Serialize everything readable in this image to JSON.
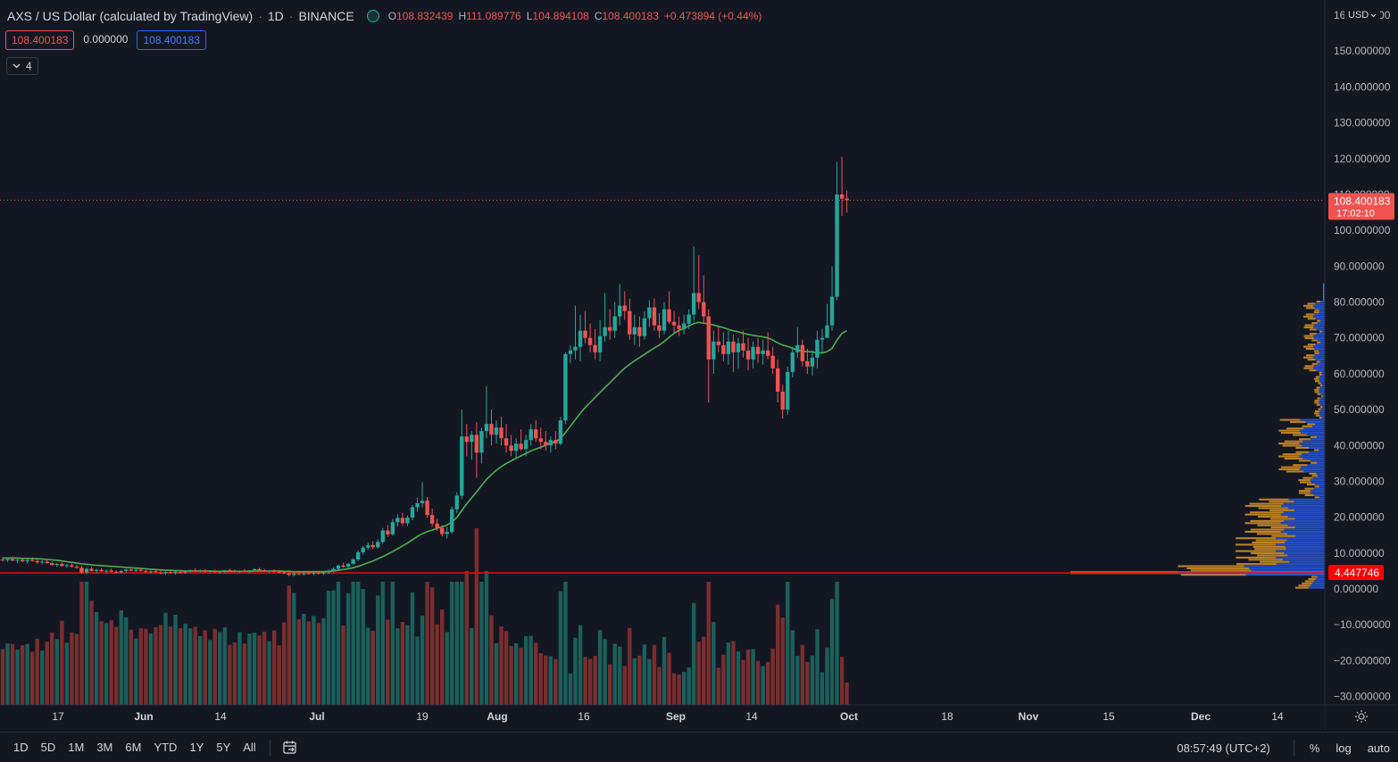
{
  "header": {
    "symbol": "AXS / US Dollar (calculated by TradingView)",
    "interval": "1D",
    "exchange": "BINANCE",
    "ohlc": {
      "o_label": "O",
      "o_value": "108.832439",
      "h_label": "H",
      "h_value": "111.089776",
      "l_label": "L",
      "l_value": "104.894108",
      "c_label": "C",
      "c_value": "108.400183",
      "change": "+0.473894 (+0.44%)"
    }
  },
  "badges": {
    "bid": "108.400183",
    "spread": "0.000000",
    "ask": "108.400183"
  },
  "indicators_toggle": {
    "count": "4"
  },
  "price_axis": {
    "currency": "USD",
    "partial_top_label": "160.000000",
    "ticks": [
      "150.000000",
      "140.000000",
      "130.000000",
      "120.000000",
      "110.000000",
      "100.000000",
      "90.000000",
      "80.000000",
      "70.000000",
      "60.000000",
      "50.000000",
      "40.000000",
      "30.000000",
      "20.000000",
      "10.000000",
      "0.000000",
      "−10.000000",
      "−20.000000",
      "−30.000000"
    ],
    "last_price_label": "108.400183",
    "countdown_label": "17:02:10",
    "hline_label": "4.447746"
  },
  "time_axis": {
    "ticks": [
      "17",
      "Jun",
      "14",
      "Jul",
      "19",
      "Aug",
      "16",
      "Sep",
      "14",
      "Oct",
      "18",
      "Nov",
      "15",
      "Dec",
      "14"
    ]
  },
  "bottom_bar": {
    "ranges": [
      "1D",
      "5D",
      "1M",
      "3M",
      "6M",
      "YTD",
      "1Y",
      "5Y",
      "All"
    ],
    "clock": "08:57:49 (UTC+2)",
    "percent_label": "%",
    "log_label": "log",
    "auto_label": "auto"
  },
  "colors": {
    "background": "#131722",
    "up": "#26a69a",
    "down": "#ef5350",
    "volume_up": "#1b5f5a",
    "volume_down": "#7a2e2e",
    "ma_line": "#4caf50",
    "hline": "#ff0000",
    "vp_blue": "#2962ff",
    "vp_yellow": "#f5a623"
  },
  "icons": {
    "indicator_chevron": "chevron-down-icon",
    "goto_date": "calendar-goto-icon",
    "settings": "gear-icon",
    "status": "market-status-icon"
  },
  "chart_data": {
    "type": "candlestick",
    "x_axis": "date (2021, daily)",
    "y_axis": "price USD",
    "ylim": [
      -32,
      160
    ],
    "horizontal_line": 4.447746,
    "last_price": 108.400183,
    "candles": [
      {
        "o": 8.2,
        "h": 8.9,
        "l": 7.6,
        "c": 8.0
      },
      {
        "o": 8.0,
        "h": 8.8,
        "l": 7.5,
        "c": 8.3
      },
      {
        "o": 8.3,
        "h": 9.0,
        "l": 7.8,
        "c": 7.9
      },
      {
        "o": 7.9,
        "h": 8.4,
        "l": 7.2,
        "c": 8.1
      },
      {
        "o": 8.1,
        "h": 8.6,
        "l": 7.5,
        "c": 7.7
      },
      {
        "o": 7.7,
        "h": 8.3,
        "l": 7.1,
        "c": 8.0
      },
      {
        "o": 8.0,
        "h": 8.8,
        "l": 7.6,
        "c": 7.8
      },
      {
        "o": 7.8,
        "h": 8.2,
        "l": 7.0,
        "c": 7.4
      },
      {
        "o": 7.4,
        "h": 8.0,
        "l": 6.9,
        "c": 7.6
      },
      {
        "o": 7.6,
        "h": 8.1,
        "l": 7.0,
        "c": 7.2
      },
      {
        "o": 7.2,
        "h": 7.6,
        "l": 6.5,
        "c": 6.7
      },
      {
        "o": 6.7,
        "h": 7.2,
        "l": 6.1,
        "c": 7.0
      },
      {
        "o": 7.0,
        "h": 7.4,
        "l": 6.2,
        "c": 6.4
      },
      {
        "o": 6.4,
        "h": 7.0,
        "l": 5.9,
        "c": 6.6
      },
      {
        "o": 6.6,
        "h": 7.1,
        "l": 6.0,
        "c": 6.2
      },
      {
        "o": 6.2,
        "h": 6.7,
        "l": 5.6,
        "c": 5.9
      },
      {
        "o": 5.9,
        "h": 6.4,
        "l": 4.2,
        "c": 4.6
      },
      {
        "o": 4.6,
        "h": 6.0,
        "l": 4.1,
        "c": 5.6
      },
      {
        "o": 5.6,
        "h": 6.1,
        "l": 4.9,
        "c": 5.0
      },
      {
        "o": 5.0,
        "h": 5.6,
        "l": 4.4,
        "c": 5.3
      },
      {
        "o": 5.3,
        "h": 5.8,
        "l": 4.8,
        "c": 4.9
      },
      {
        "o": 4.9,
        "h": 5.4,
        "l": 4.3,
        "c": 5.1
      },
      {
        "o": 5.1,
        "h": 5.7,
        "l": 4.6,
        "c": 4.8
      },
      {
        "o": 4.8,
        "h": 5.2,
        "l": 4.2,
        "c": 4.6
      },
      {
        "o": 4.6,
        "h": 5.3,
        "l": 4.3,
        "c": 5.0
      },
      {
        "o": 5.0,
        "h": 5.6,
        "l": 4.6,
        "c": 5.4
      },
      {
        "o": 5.4,
        "h": 5.9,
        "l": 4.9,
        "c": 5.1
      },
      {
        "o": 5.1,
        "h": 5.6,
        "l": 4.7,
        "c": 5.3
      },
      {
        "o": 5.3,
        "h": 5.8,
        "l": 4.8,
        "c": 5.0
      },
      {
        "o": 5.0,
        "h": 5.4,
        "l": 4.5,
        "c": 4.7
      },
      {
        "o": 4.7,
        "h": 5.2,
        "l": 4.3,
        "c": 4.9
      },
      {
        "o": 4.9,
        "h": 5.3,
        "l": 4.4,
        "c": 4.6
      },
      {
        "o": 4.6,
        "h": 5.1,
        "l": 4.1,
        "c": 4.4
      },
      {
        "o": 4.4,
        "h": 4.9,
        "l": 3.9,
        "c": 4.7
      },
      {
        "o": 4.7,
        "h": 5.2,
        "l": 4.2,
        "c": 4.5
      },
      {
        "o": 4.5,
        "h": 5.0,
        "l": 4.0,
        "c": 4.8
      },
      {
        "o": 4.8,
        "h": 5.3,
        "l": 4.3,
        "c": 4.6
      },
      {
        "o": 4.6,
        "h": 5.1,
        "l": 4.2,
        "c": 4.9
      },
      {
        "o": 4.9,
        "h": 5.4,
        "l": 4.5,
        "c": 5.2
      },
      {
        "o": 5.2,
        "h": 5.7,
        "l": 4.7,
        "c": 4.9
      },
      {
        "o": 4.9,
        "h": 5.4,
        "l": 4.5,
        "c": 5.1
      },
      {
        "o": 5.1,
        "h": 5.5,
        "l": 4.6,
        "c": 4.8
      },
      {
        "o": 4.8,
        "h": 5.2,
        "l": 4.4,
        "c": 5.0
      },
      {
        "o": 5.0,
        "h": 5.4,
        "l": 4.5,
        "c": 4.7
      },
      {
        "o": 4.7,
        "h": 5.1,
        "l": 4.2,
        "c": 4.9
      },
      {
        "o": 4.9,
        "h": 5.3,
        "l": 4.4,
        "c": 5.2
      },
      {
        "o": 5.2,
        "h": 5.6,
        "l": 4.8,
        "c": 5.0
      },
      {
        "o": 5.0,
        "h": 5.4,
        "l": 4.6,
        "c": 4.8
      },
      {
        "o": 4.8,
        "h": 5.2,
        "l": 4.4,
        "c": 5.1
      },
      {
        "o": 5.1,
        "h": 5.5,
        "l": 4.7,
        "c": 4.9
      },
      {
        "o": 4.9,
        "h": 5.3,
        "l": 4.5,
        "c": 5.2
      },
      {
        "o": 5.2,
        "h": 5.7,
        "l": 4.8,
        "c": 5.5
      },
      {
        "o": 5.5,
        "h": 5.9,
        "l": 5.0,
        "c": 5.2
      },
      {
        "o": 5.2,
        "h": 5.6,
        "l": 4.7,
        "c": 4.9
      },
      {
        "o": 4.9,
        "h": 5.3,
        "l": 4.5,
        "c": 5.1
      },
      {
        "o": 5.1,
        "h": 5.5,
        "l": 4.6,
        "c": 4.8
      },
      {
        "o": 4.8,
        "h": 5.1,
        "l": 4.4,
        "c": 4.6
      },
      {
        "o": 4.6,
        "h": 5.0,
        "l": 4.1,
        "c": 4.3
      },
      {
        "o": 4.3,
        "h": 4.8,
        "l": 3.6,
        "c": 3.9
      },
      {
        "o": 3.9,
        "h": 4.5,
        "l": 3.5,
        "c": 4.3
      },
      {
        "o": 4.3,
        "h": 4.8,
        "l": 3.8,
        "c": 4.1
      },
      {
        "o": 4.1,
        "h": 4.6,
        "l": 3.7,
        "c": 4.4
      },
      {
        "o": 4.4,
        "h": 4.9,
        "l": 3.9,
        "c": 4.2
      },
      {
        "o": 4.2,
        "h": 4.7,
        "l": 3.8,
        "c": 4.5
      },
      {
        "o": 4.5,
        "h": 5.0,
        "l": 4.0,
        "c": 4.3
      },
      {
        "o": 4.3,
        "h": 4.8,
        "l": 3.9,
        "c": 4.6
      },
      {
        "o": 4.6,
        "h": 5.4,
        "l": 4.2,
        "c": 5.1
      },
      {
        "o": 5.1,
        "h": 6.0,
        "l": 4.6,
        "c": 5.6
      },
      {
        "o": 5.6,
        "h": 6.8,
        "l": 5.2,
        "c": 6.5
      },
      {
        "o": 6.5,
        "h": 7.3,
        "l": 5.9,
        "c": 6.2
      },
      {
        "o": 6.2,
        "h": 7.2,
        "l": 5.8,
        "c": 7.0
      },
      {
        "o": 7.0,
        "h": 8.6,
        "l": 6.6,
        "c": 8.2
      },
      {
        "o": 8.2,
        "h": 10.8,
        "l": 7.7,
        "c": 10.2
      },
      {
        "o": 10.2,
        "h": 12.0,
        "l": 9.5,
        "c": 11.5
      },
      {
        "o": 11.5,
        "h": 13.0,
        "l": 10.8,
        "c": 12.2
      },
      {
        "o": 12.2,
        "h": 13.3,
        "l": 11.0,
        "c": 11.6
      },
      {
        "o": 11.6,
        "h": 13.8,
        "l": 11.2,
        "c": 13.1
      },
      {
        "o": 13.1,
        "h": 17.0,
        "l": 12.6,
        "c": 16.3
      },
      {
        "o": 16.3,
        "h": 17.8,
        "l": 14.5,
        "c": 15.2
      },
      {
        "o": 15.2,
        "h": 19.5,
        "l": 14.8,
        "c": 18.6
      },
      {
        "o": 18.6,
        "h": 20.8,
        "l": 17.4,
        "c": 19.8
      },
      {
        "o": 19.8,
        "h": 21.2,
        "l": 17.6,
        "c": 18.3
      },
      {
        "o": 18.3,
        "h": 20.5,
        "l": 17.5,
        "c": 19.9
      },
      {
        "o": 19.9,
        "h": 23.4,
        "l": 19.2,
        "c": 22.8
      },
      {
        "o": 22.8,
        "h": 25.5,
        "l": 21.5,
        "c": 23.9
      },
      {
        "o": 23.9,
        "h": 29.8,
        "l": 22.8,
        "c": 24.6
      },
      {
        "o": 24.6,
        "h": 25.6,
        "l": 19.8,
        "c": 20.6
      },
      {
        "o": 20.6,
        "h": 22.4,
        "l": 17.4,
        "c": 18.2
      },
      {
        "o": 18.2,
        "h": 19.6,
        "l": 16.2,
        "c": 17.0
      },
      {
        "o": 17.0,
        "h": 17.8,
        "l": 14.6,
        "c": 15.3
      },
      {
        "o": 15.3,
        "h": 17.2,
        "l": 14.1,
        "c": 15.9
      },
      {
        "o": 15.9,
        "h": 23.0,
        "l": 15.4,
        "c": 22.2
      },
      {
        "o": 22.2,
        "h": 27.0,
        "l": 21.2,
        "c": 26.0
      },
      {
        "o": 26.0,
        "h": 50.0,
        "l": 25.0,
        "c": 42.5
      },
      {
        "o": 42.5,
        "h": 46.0,
        "l": 37.0,
        "c": 41.0
      },
      {
        "o": 41.0,
        "h": 44.0,
        "l": 36.0,
        "c": 43.0
      },
      {
        "o": 43.0,
        "h": 46.5,
        "l": 31.0,
        "c": 38.0
      },
      {
        "o": 38.0,
        "h": 45.0,
        "l": 35.0,
        "c": 44.0
      },
      {
        "o": 44.0,
        "h": 56.5,
        "l": 42.0,
        "c": 46.0
      },
      {
        "o": 46.0,
        "h": 50.0,
        "l": 40.0,
        "c": 43.0
      },
      {
        "o": 43.0,
        "h": 47.0,
        "l": 40.5,
        "c": 45.0
      },
      {
        "o": 45.0,
        "h": 48.0,
        "l": 40.0,
        "c": 42.0
      },
      {
        "o": 42.0,
        "h": 46.0,
        "l": 38.0,
        "c": 40.0
      },
      {
        "o": 40.0,
        "h": 43.0,
        "l": 37.0,
        "c": 38.5
      },
      {
        "o": 38.5,
        "h": 42.0,
        "l": 36.5,
        "c": 40.5
      },
      {
        "o": 40.5,
        "h": 44.5,
        "l": 38.5,
        "c": 39.0
      },
      {
        "o": 39.0,
        "h": 43.0,
        "l": 37.0,
        "c": 41.5
      },
      {
        "o": 41.5,
        "h": 46.0,
        "l": 40.0,
        "c": 44.5
      },
      {
        "o": 44.5,
        "h": 47.0,
        "l": 41.0,
        "c": 42.0
      },
      {
        "o": 42.0,
        "h": 45.0,
        "l": 39.0,
        "c": 41.0
      },
      {
        "o": 41.0,
        "h": 44.0,
        "l": 38.5,
        "c": 40.0
      },
      {
        "o": 40.0,
        "h": 42.5,
        "l": 38.0,
        "c": 41.5
      },
      {
        "o": 41.5,
        "h": 44.0,
        "l": 39.0,
        "c": 40.5
      },
      {
        "o": 40.5,
        "h": 48.0,
        "l": 40.0,
        "c": 47.0
      },
      {
        "o": 47.0,
        "h": 66.0,
        "l": 46.0,
        "c": 65.5
      },
      {
        "o": 65.5,
        "h": 68.0,
        "l": 63.0,
        "c": 66.5
      },
      {
        "o": 66.5,
        "h": 79.0,
        "l": 64.0,
        "c": 67.5
      },
      {
        "o": 67.5,
        "h": 76.5,
        "l": 63.5,
        "c": 72.0
      },
      {
        "o": 72.0,
        "h": 77.5,
        "l": 68.5,
        "c": 70.0
      },
      {
        "o": 70.0,
        "h": 74.0,
        "l": 66.0,
        "c": 68.0
      },
      {
        "o": 68.0,
        "h": 72.5,
        "l": 64.0,
        "c": 66.0
      },
      {
        "o": 66.0,
        "h": 75.0,
        "l": 63.5,
        "c": 70.5
      },
      {
        "o": 70.5,
        "h": 82.5,
        "l": 69.0,
        "c": 73.0
      },
      {
        "o": 73.0,
        "h": 78.0,
        "l": 69.5,
        "c": 72.0
      },
      {
        "o": 72.0,
        "h": 80.0,
        "l": 70.0,
        "c": 76.0
      },
      {
        "o": 76.0,
        "h": 85.0,
        "l": 73.5,
        "c": 79.0
      },
      {
        "o": 79.0,
        "h": 83.0,
        "l": 75.0,
        "c": 77.5
      },
      {
        "o": 77.5,
        "h": 81.0,
        "l": 69.5,
        "c": 71.0
      },
      {
        "o": 71.0,
        "h": 76.5,
        "l": 68.0,
        "c": 73.0
      },
      {
        "o": 73.0,
        "h": 76.0,
        "l": 67.5,
        "c": 70.5
      },
      {
        "o": 70.5,
        "h": 77.5,
        "l": 69.5,
        "c": 75.5
      },
      {
        "o": 75.5,
        "h": 80.5,
        "l": 73.0,
        "c": 78.5
      },
      {
        "o": 78.5,
        "h": 81.0,
        "l": 72.0,
        "c": 73.5
      },
      {
        "o": 73.5,
        "h": 77.0,
        "l": 70.0,
        "c": 72.0
      },
      {
        "o": 72.0,
        "h": 80.0,
        "l": 71.0,
        "c": 78.0
      },
      {
        "o": 78.0,
        "h": 83.0,
        "l": 74.0,
        "c": 74.5
      },
      {
        "o": 74.5,
        "h": 77.5,
        "l": 71.5,
        "c": 73.5
      },
      {
        "o": 73.5,
        "h": 76.0,
        "l": 70.5,
        "c": 72.5
      },
      {
        "o": 72.5,
        "h": 76.5,
        "l": 71.0,
        "c": 74.0
      },
      {
        "o": 74.0,
        "h": 78.0,
        "l": 72.5,
        "c": 76.5
      },
      {
        "o": 76.5,
        "h": 95.5,
        "l": 74.5,
        "c": 82.5
      },
      {
        "o": 82.5,
        "h": 93.0,
        "l": 78.0,
        "c": 80.0
      },
      {
        "o": 80.0,
        "h": 87.5,
        "l": 74.0,
        "c": 76.0
      },
      {
        "o": 76.0,
        "h": 78.0,
        "l": 52.0,
        "c": 64.0
      },
      {
        "o": 64.0,
        "h": 72.0,
        "l": 60.0,
        "c": 69.0
      },
      {
        "o": 69.0,
        "h": 73.0,
        "l": 66.0,
        "c": 68.0
      },
      {
        "o": 68.0,
        "h": 71.5,
        "l": 63.5,
        "c": 65.5
      },
      {
        "o": 65.5,
        "h": 72.0,
        "l": 62.5,
        "c": 69.0
      },
      {
        "o": 69.0,
        "h": 71.0,
        "l": 60.5,
        "c": 66.0
      },
      {
        "o": 66.0,
        "h": 70.0,
        "l": 61.5,
        "c": 68.5
      },
      {
        "o": 68.5,
        "h": 72.0,
        "l": 64.5,
        "c": 66.5
      },
      {
        "o": 66.5,
        "h": 70.0,
        "l": 61.0,
        "c": 64.0
      },
      {
        "o": 64.0,
        "h": 69.0,
        "l": 61.5,
        "c": 67.5
      },
      {
        "o": 67.5,
        "h": 70.0,
        "l": 63.0,
        "c": 65.5
      },
      {
        "o": 65.5,
        "h": 69.5,
        "l": 62.5,
        "c": 66.5
      },
      {
        "o": 66.5,
        "h": 71.5,
        "l": 64.0,
        "c": 65.0
      },
      {
        "o": 65.0,
        "h": 67.5,
        "l": 60.0,
        "c": 61.5
      },
      {
        "o": 61.5,
        "h": 64.0,
        "l": 52.0,
        "c": 55.0
      },
      {
        "o": 55.0,
        "h": 57.0,
        "l": 47.5,
        "c": 50.0
      },
      {
        "o": 50.0,
        "h": 62.0,
        "l": 48.5,
        "c": 60.5
      },
      {
        "o": 60.5,
        "h": 67.5,
        "l": 59.0,
        "c": 66.0
      },
      {
        "o": 66.0,
        "h": 73.0,
        "l": 64.5,
        "c": 68.0
      },
      {
        "o": 68.0,
        "h": 69.5,
        "l": 62.0,
        "c": 63.5
      },
      {
        "o": 63.5,
        "h": 67.0,
        "l": 60.0,
        "c": 62.0
      },
      {
        "o": 62.0,
        "h": 66.5,
        "l": 59.5,
        "c": 64.5
      },
      {
        "o": 64.5,
        "h": 72.0,
        "l": 61.5,
        "c": 69.5
      },
      {
        "o": 69.5,
        "h": 72.5,
        "l": 66.0,
        "c": 70.0
      },
      {
        "o": 70.0,
        "h": 79.5,
        "l": 70.0,
        "c": 73.5
      },
      {
        "o": 73.5,
        "h": 90.0,
        "l": 72.0,
        "c": 81.5
      },
      {
        "o": 81.5,
        "h": 119.0,
        "l": 80.5,
        "c": 110.0
      },
      {
        "o": 110.0,
        "h": 120.5,
        "l": 104.0,
        "c": 108.8
      },
      {
        "o": 108.832439,
        "h": 111.089776,
        "l": 104.894108,
        "c": 108.400183
      }
    ],
    "moving_average": [
      8.6,
      8.6,
      8.6,
      8.6,
      8.5,
      8.5,
      8.4,
      8.4,
      8.3,
      8.2,
      8.1,
      8.0,
      7.8,
      7.6,
      7.4,
      7.2,
      7.0,
      6.9,
      6.7,
      6.6,
      6.5,
      6.4,
      6.3,
      6.2,
      6.1,
      6.0,
      5.9,
      5.8,
      5.7,
      5.6,
      5.5,
      5.4,
      5.3,
      5.2,
      5.2,
      5.1,
      5.1,
      5.0,
      5.0,
      5.0,
      5.0,
      5.0,
      5.0,
      4.9,
      4.9,
      4.9,
      4.9,
      4.9,
      4.9,
      4.9,
      4.9,
      5.0,
      5.0,
      5.0,
      5.0,
      5.0,
      5.0,
      4.9,
      4.9,
      4.8,
      4.8,
      4.8,
      4.8,
      4.8,
      4.8,
      4.8,
      4.9,
      5.0,
      5.2,
      5.4,
      5.6,
      5.9,
      6.3,
      6.8,
      7.3,
      7.8,
      8.4,
      9.0,
      9.7,
      10.4,
      11.2,
      12.0,
      12.8,
      13.7,
      14.6,
      15.4,
      16.0,
      16.4,
      16.9,
      17.3,
      17.8,
      18.7,
      19.9,
      21.9,
      23.7,
      25.4,
      27.1,
      28.8,
      30.5,
      31.9,
      33.1,
      34.1,
      35.0,
      35.7,
      36.4,
      37.1,
      37.8,
      38.5,
      39.0,
      39.5,
      40.1,
      40.6,
      41.1,
      41.9,
      43.6,
      45.4,
      47.2,
      49.0,
      50.6,
      52.0,
      53.4,
      54.8,
      56.2,
      57.5,
      58.9,
      60.3,
      61.6,
      62.6,
      63.6,
      64.5,
      65.4,
      66.3,
      67.2,
      68.0,
      69.0,
      70.2,
      71.3,
      72.1,
      72.6,
      73.3,
      74.0,
      74.3,
      74.1,
      73.9,
      73.6,
      73.2,
      72.9,
      72.4,
      72.0,
      71.7,
      71.3,
      71.0,
      70.7,
      70.5,
      70.3,
      70.0,
      69.4,
      68.6,
      68.0,
      67.6,
      67.1,
      66.6,
      66.3,
      66.2,
      66.1,
      65.9,
      65.8,
      66.2,
      67.1,
      69.4,
      71.3,
      72.0
    ]
  }
}
